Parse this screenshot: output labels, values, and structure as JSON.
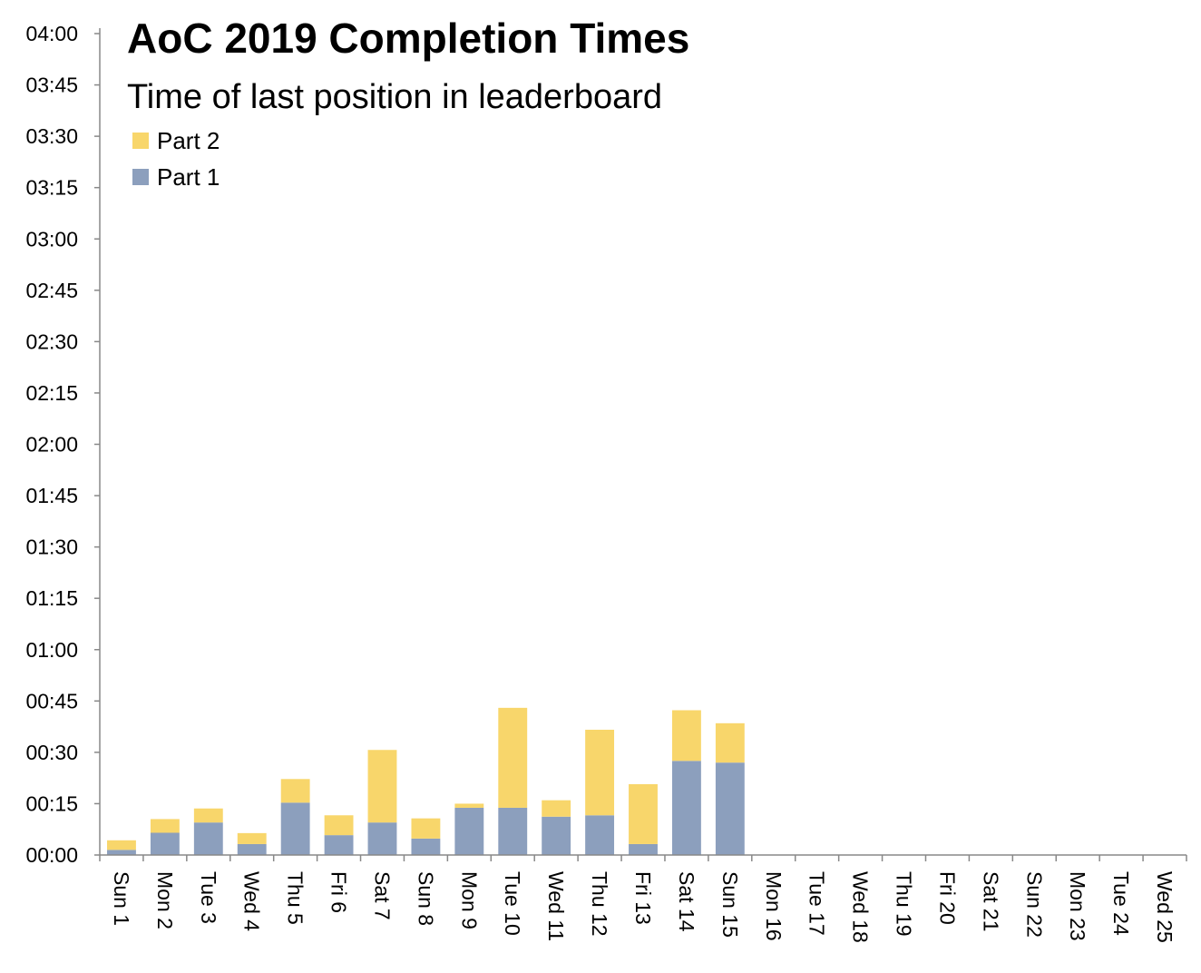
{
  "chart_data": {
    "type": "bar",
    "stacked": true,
    "title": "AoC 2019 Completion Times",
    "subtitle": "Time of last position in leaderboard",
    "xlabel": "",
    "ylabel": "",
    "ylim": [
      0,
      240
    ],
    "y_tick_step": 15,
    "y_tick_labels": [
      "00:00",
      "00:15",
      "00:30",
      "00:45",
      "01:00",
      "01:15",
      "01:30",
      "01:45",
      "02:00",
      "02:15",
      "02:30",
      "02:45",
      "03:00",
      "03:15",
      "03:30",
      "03:45",
      "04:00"
    ],
    "categories": [
      "Sun 1",
      "Mon 2",
      "Tue 3",
      "Wed 4",
      "Thu 5",
      "Fri 6",
      "Sat 7",
      "Sun 8",
      "Mon 9",
      "Tue 10",
      "Wed 11",
      "Thu 12",
      "Fri 13",
      "Sat 14",
      "Sun 15",
      "Mon 16",
      "Tue 17",
      "Wed 18",
      "Thu 19",
      "Fri 20",
      "Sat 21",
      "Sun 22",
      "Mon 23",
      "Tue 24",
      "Wed 25"
    ],
    "series": [
      {
        "name": "Part 1",
        "color": "#8c9fbd",
        "values": [
          1.5,
          6.5,
          9.5,
          3.2,
          15.3,
          5.8,
          9.5,
          4.8,
          13.8,
          13.8,
          11.2,
          11.6,
          3.2,
          27.5,
          27.0,
          0,
          0,
          0,
          0,
          0,
          0,
          0,
          0,
          0,
          0
        ]
      },
      {
        "name": "Part 2",
        "color": "#f8d66b",
        "values": [
          2.8,
          4.0,
          4.1,
          3.2,
          6.9,
          5.8,
          21.2,
          5.9,
          1.2,
          29.2,
          4.8,
          25.0,
          17.5,
          14.8,
          11.5,
          0,
          0,
          0,
          0,
          0,
          0,
          0,
          0,
          0,
          0
        ]
      }
    ],
    "legend": {
      "position": "top-left",
      "order": [
        "Part 2",
        "Part 1"
      ]
    },
    "grid": false,
    "axis_color": "#888888"
  }
}
